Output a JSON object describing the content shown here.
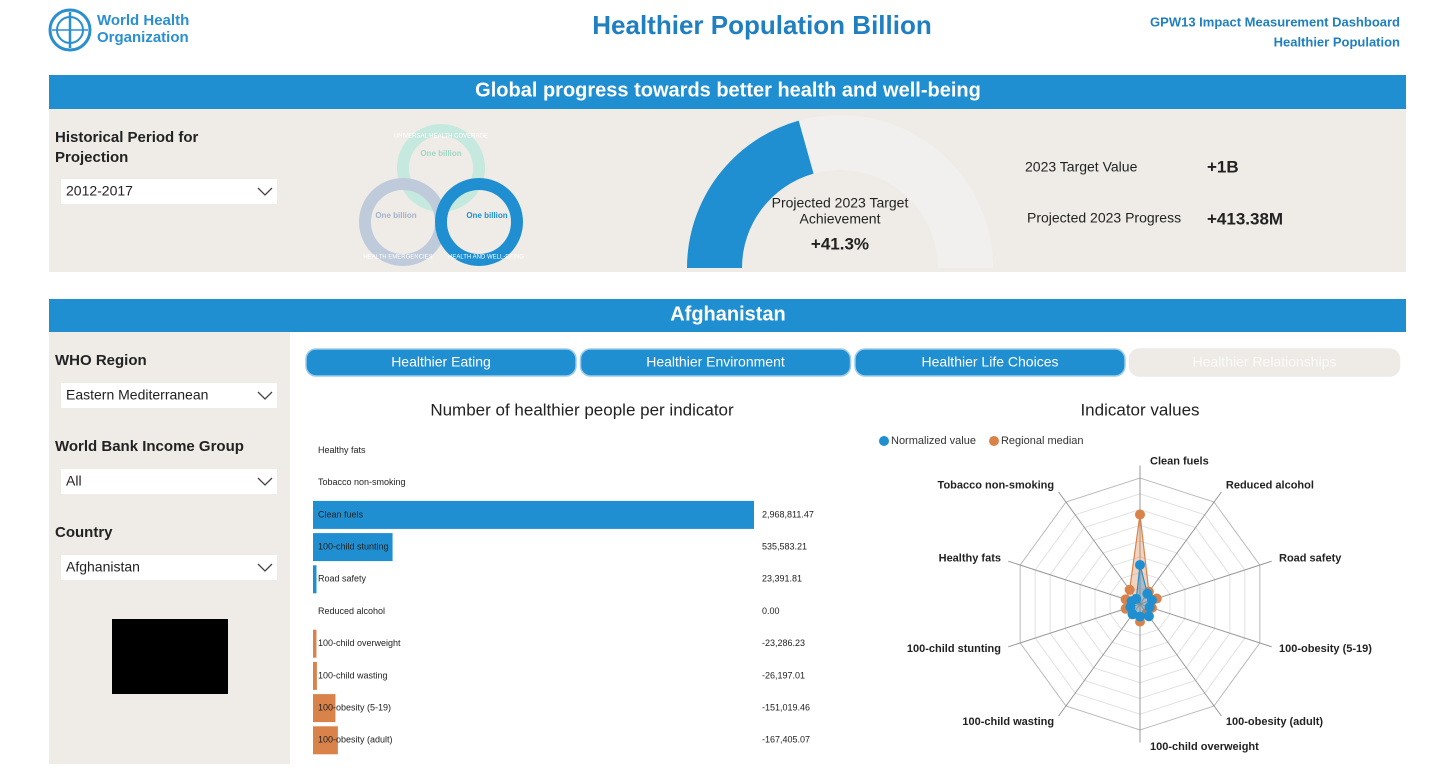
{
  "header": {
    "logo_lines": [
      "World Health",
      "Organization"
    ],
    "title": "Healthier Population Billion",
    "subtitle_lines": [
      "GPW13 Impact Measurement Dashboard",
      "Healthier Population"
    ]
  },
  "global": {
    "banner": "Global progress towards better health and well-being",
    "period_label_lines": [
      "Historical Period for",
      "Projection"
    ],
    "period_value": "2012-2017",
    "logo_texts": [
      "UNIVERSAL HEALTH COVERAGE",
      "One billion",
      "One billion",
      "One billion",
      "HEALTH EMERGENCIES",
      "HEALTH AND WELL-BEING"
    ],
    "gauge": {
      "type": "gauge",
      "label_lines": [
        "Projected 2023 Target",
        "Achievement"
      ],
      "value": 41.3,
      "value_label": "+41.3%",
      "ylim": [
        0,
        100
      ],
      "color": "#1f8fd1"
    },
    "targets": [
      {
        "label": "2023 Target Value",
        "value": "+1B"
      },
      {
        "label": "Projected 2023 Progress",
        "value": "+413.38M"
      }
    ]
  },
  "country": {
    "banner": "Afghanistan",
    "filters": [
      {
        "label": "WHO Region",
        "value": "Eastern Mediterranean"
      },
      {
        "label": "World Bank Income Group",
        "value": "All"
      },
      {
        "label": "Country",
        "value": "Afghanistan"
      }
    ],
    "tabs": [
      "Healthier Eating",
      "Healthier Environment",
      "Healthier Life Choices",
      "Healthier Relationships"
    ],
    "bar_chart": {
      "type": "bar",
      "title": "Number of healthier people per indicator",
      "categories": [
        "Healthy fats",
        "Tobacco non-smoking",
        "Clean fuels",
        "100-child stunting",
        "Road safety",
        "Reduced alcohol",
        "100-child overweight",
        "100-child wasting",
        "100-obesity (5-19)",
        "100-obesity (adult)"
      ],
      "values": [
        null,
        null,
        2968811.47,
        535583.21,
        23391.81,
        0,
        -23286.23,
        -26197.01,
        -151019.46,
        -167405.07
      ],
      "value_labels": [
        null,
        null,
        "2,968,811.47",
        "535,583.21",
        "23,391.81",
        "0.00",
        "-23,286.23",
        "-26,197.01",
        "-151,019.46",
        "-167,405.07"
      ],
      "xlim": [
        0,
        2968811.47
      ],
      "positive_color": "#1f8fd1",
      "negative_color": "#d9824a"
    },
    "radar_chart": {
      "type": "radar",
      "title": "Indicator values",
      "categories": [
        "Clean fuels",
        "Reduced alcohol",
        "Road safety",
        "100-obesity (5-19)",
        "100-obesity (adult)",
        "100-child overweight",
        "100-child wasting",
        "100-child stunting",
        "Healthy fats",
        "Tobacco non-smoking"
      ],
      "rlim": [
        0,
        1
      ],
      "series": [
        {
          "name": "Normalized value",
          "color": "#1f8fd1",
          "values": [
            0.31,
            0.1,
            0.1,
            0.08,
            0.12,
            0.1,
            0.1,
            0.08,
            0.07,
            0.05
          ]
        },
        {
          "name": "Regional median",
          "color": "#d9824a",
          "values": [
            0.71,
            0.12,
            0.14,
            0.1,
            0.09,
            0.14,
            0.1,
            0.12,
            0.12,
            0.14
          ]
        }
      ]
    }
  }
}
